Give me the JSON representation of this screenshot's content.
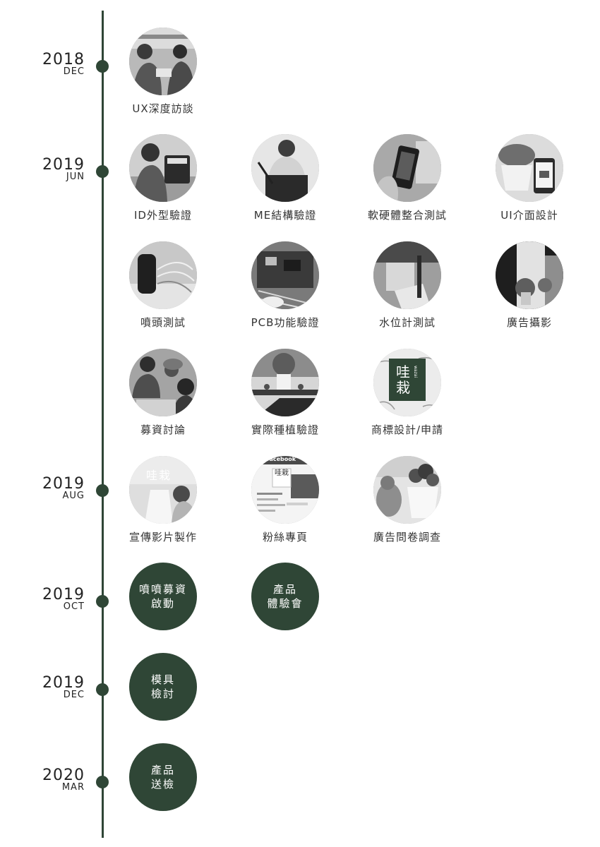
{
  "markers": [
    {
      "year": "2018",
      "month": "DEC"
    },
    {
      "year": "2019",
      "month": "JUN"
    },
    {
      "year": "2019",
      "month": "AUG"
    },
    {
      "year": "2019",
      "month": "OCT"
    },
    {
      "year": "2019",
      "month": "DEC"
    },
    {
      "year": "2020",
      "month": "MAR"
    }
  ],
  "items": {
    "ux_interview": "UX深度訪談",
    "id_design": "ID外型驗證",
    "me_structure": "ME結構驗證",
    "hw_sw_test": "軟硬體整合測試",
    "ui_design": "UI介面設計",
    "nozzle_test": "噴頭測試",
    "pcb_test": "PCB功能驗證",
    "water_gauge_test": "水位計測試",
    "ad_shoot": "廣告攝影",
    "funding_discussion": "募資討論",
    "planting_test": "實際種植驗證",
    "trademark": "商標設計/申請",
    "promo_video": "宣傳影片製作",
    "fan_page": "粉絲專頁",
    "ad_survey": "廣告問卷調查"
  },
  "milestones": {
    "funding_launch": [
      "噴噴募資",
      "啟動"
    ],
    "product_experience": [
      "產品",
      "體驗會"
    ],
    "mold_review": [
      "模具",
      "檢討"
    ],
    "product_inspection": [
      "產品",
      "送檢"
    ]
  },
  "logo": {
    "text": "哇栽",
    "small_text": "wazai",
    "facebook_label": "facebook"
  },
  "colors": {
    "accent": "#2f4636",
    "text": "#222222"
  }
}
